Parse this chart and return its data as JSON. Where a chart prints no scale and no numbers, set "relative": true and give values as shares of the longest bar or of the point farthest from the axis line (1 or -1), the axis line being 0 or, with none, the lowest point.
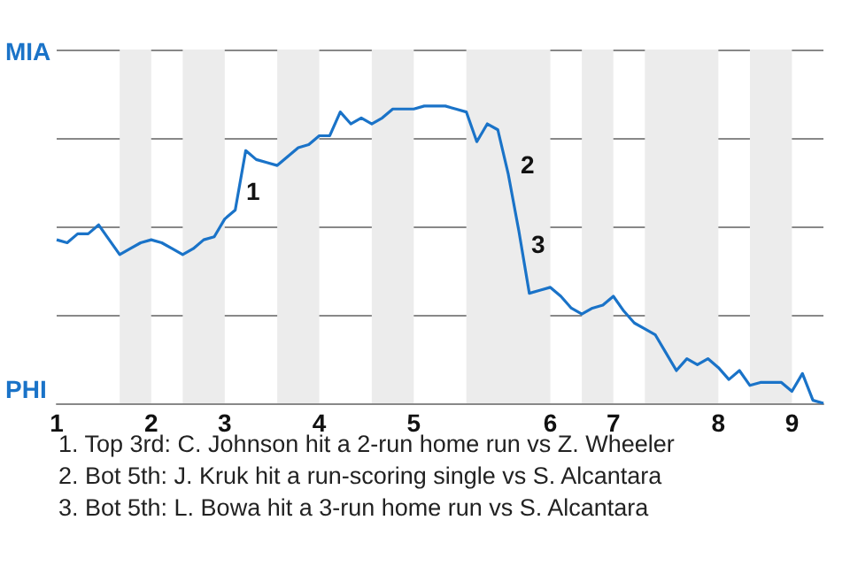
{
  "chart_data": {
    "type": "line",
    "relative": true,
    "categories": [
      "1",
      null,
      null,
      null,
      null,
      null,
      null,
      null,
      null,
      "2",
      null,
      null,
      null,
      null,
      null,
      null,
      "3",
      null,
      null,
      null,
      null,
      null,
      null,
      null,
      null,
      "4",
      null,
      null,
      null,
      null,
      null,
      null,
      null,
      null,
      "5",
      null,
      null,
      null,
      null,
      null,
      null,
      null,
      null,
      null,
      null,
      null,
      null,
      "6",
      null,
      null,
      null,
      null,
      null,
      "7",
      null,
      null,
      null,
      null,
      null,
      null,
      null,
      null,
      null,
      "8",
      null,
      null,
      null,
      null,
      null,
      null,
      "9",
      null,
      null,
      null
    ],
    "series": [
      {
        "color": "#1a73c8",
        "values": [
          0.55,
          0.54,
          0.57,
          0.57,
          0.6,
          0.55,
          0.5,
          0.52,
          0.54,
          0.55,
          0.54,
          0.52,
          0.5,
          0.52,
          0.55,
          0.56,
          0.62,
          0.65,
          0.85,
          0.82,
          0.81,
          0.8,
          0.83,
          0.86,
          0.87,
          0.9,
          0.9,
          0.98,
          0.94,
          0.96,
          0.94,
          0.96,
          0.99,
          0.99,
          0.99,
          1,
          1,
          1,
          0.99,
          0.98,
          0.88,
          0.94,
          0.92,
          0.77,
          0.58,
          0.37,
          0.38,
          0.39,
          0.36,
          0.32,
          0.3,
          0.32,
          0.33,
          0.36,
          0.31,
          0.27,
          0.25,
          0.23,
          0.17,
          0.11,
          0.15,
          0.13,
          0.15,
          0.12,
          0.08,
          0.11,
          0.06,
          0.07,
          0.07,
          0.07,
          0.04,
          0.1,
          0.01,
          0
        ]
      }
    ],
    "grid": "y",
    "marker": "none",
    "annotations": [
      "MIA",
      "PHI",
      "1",
      "2",
      "3",
      "1. Top 3rd: C. Johnson hit a 2-run home run vs Z. Wheeler",
      "2. Bot 5th: J. Kruk hit a run-scoring single vs S. Alcantara",
      "3. Bot 5th: L. Bowa hit a 3-run home run vs S. Alcantara"
    ]
  }
}
